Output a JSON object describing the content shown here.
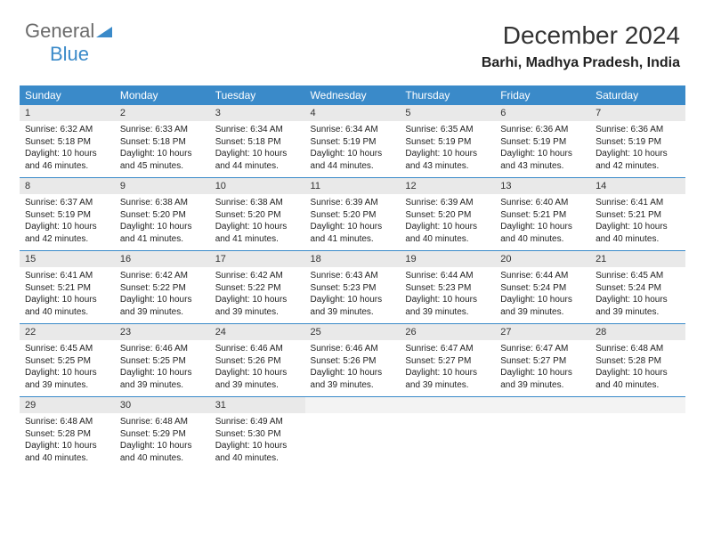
{
  "logo": {
    "word1": "General",
    "word2": "Blue"
  },
  "title": "December 2024",
  "location": "Barhi, Madhya Pradesh, India",
  "colors": {
    "header_bg": "#3a8ac9",
    "header_text": "#ffffff",
    "daynum_bg": "#e9e9e9",
    "row_border": "#3a8ac9",
    "logo_gray": "#6b6b6b",
    "logo_blue": "#3a8ac9"
  },
  "day_headers": [
    "Sunday",
    "Monday",
    "Tuesday",
    "Wednesday",
    "Thursday",
    "Friday",
    "Saturday"
  ],
  "weeks": [
    [
      {
        "n": "1",
        "sr": "6:32 AM",
        "ss": "5:18 PM",
        "dl": "10 hours and 46 minutes."
      },
      {
        "n": "2",
        "sr": "6:33 AM",
        "ss": "5:18 PM",
        "dl": "10 hours and 45 minutes."
      },
      {
        "n": "3",
        "sr": "6:34 AM",
        "ss": "5:18 PM",
        "dl": "10 hours and 44 minutes."
      },
      {
        "n": "4",
        "sr": "6:34 AM",
        "ss": "5:19 PM",
        "dl": "10 hours and 44 minutes."
      },
      {
        "n": "5",
        "sr": "6:35 AM",
        "ss": "5:19 PM",
        "dl": "10 hours and 43 minutes."
      },
      {
        "n": "6",
        "sr": "6:36 AM",
        "ss": "5:19 PM",
        "dl": "10 hours and 43 minutes."
      },
      {
        "n": "7",
        "sr": "6:36 AM",
        "ss": "5:19 PM",
        "dl": "10 hours and 42 minutes."
      }
    ],
    [
      {
        "n": "8",
        "sr": "6:37 AM",
        "ss": "5:19 PM",
        "dl": "10 hours and 42 minutes."
      },
      {
        "n": "9",
        "sr": "6:38 AM",
        "ss": "5:20 PM",
        "dl": "10 hours and 41 minutes."
      },
      {
        "n": "10",
        "sr": "6:38 AM",
        "ss": "5:20 PM",
        "dl": "10 hours and 41 minutes."
      },
      {
        "n": "11",
        "sr": "6:39 AM",
        "ss": "5:20 PM",
        "dl": "10 hours and 41 minutes."
      },
      {
        "n": "12",
        "sr": "6:39 AM",
        "ss": "5:20 PM",
        "dl": "10 hours and 40 minutes."
      },
      {
        "n": "13",
        "sr": "6:40 AM",
        "ss": "5:21 PM",
        "dl": "10 hours and 40 minutes."
      },
      {
        "n": "14",
        "sr": "6:41 AM",
        "ss": "5:21 PM",
        "dl": "10 hours and 40 minutes."
      }
    ],
    [
      {
        "n": "15",
        "sr": "6:41 AM",
        "ss": "5:21 PM",
        "dl": "10 hours and 40 minutes."
      },
      {
        "n": "16",
        "sr": "6:42 AM",
        "ss": "5:22 PM",
        "dl": "10 hours and 39 minutes."
      },
      {
        "n": "17",
        "sr": "6:42 AM",
        "ss": "5:22 PM",
        "dl": "10 hours and 39 minutes."
      },
      {
        "n": "18",
        "sr": "6:43 AM",
        "ss": "5:23 PM",
        "dl": "10 hours and 39 minutes."
      },
      {
        "n": "19",
        "sr": "6:44 AM",
        "ss": "5:23 PM",
        "dl": "10 hours and 39 minutes."
      },
      {
        "n": "20",
        "sr": "6:44 AM",
        "ss": "5:24 PM",
        "dl": "10 hours and 39 minutes."
      },
      {
        "n": "21",
        "sr": "6:45 AM",
        "ss": "5:24 PM",
        "dl": "10 hours and 39 minutes."
      }
    ],
    [
      {
        "n": "22",
        "sr": "6:45 AM",
        "ss": "5:25 PM",
        "dl": "10 hours and 39 minutes."
      },
      {
        "n": "23",
        "sr": "6:46 AM",
        "ss": "5:25 PM",
        "dl": "10 hours and 39 minutes."
      },
      {
        "n": "24",
        "sr": "6:46 AM",
        "ss": "5:26 PM",
        "dl": "10 hours and 39 minutes."
      },
      {
        "n": "25",
        "sr": "6:46 AM",
        "ss": "5:26 PM",
        "dl": "10 hours and 39 minutes."
      },
      {
        "n": "26",
        "sr": "6:47 AM",
        "ss": "5:27 PM",
        "dl": "10 hours and 39 minutes."
      },
      {
        "n": "27",
        "sr": "6:47 AM",
        "ss": "5:27 PM",
        "dl": "10 hours and 39 minutes."
      },
      {
        "n": "28",
        "sr": "6:48 AM",
        "ss": "5:28 PM",
        "dl": "10 hours and 40 minutes."
      }
    ],
    [
      {
        "n": "29",
        "sr": "6:48 AM",
        "ss": "5:28 PM",
        "dl": "10 hours and 40 minutes."
      },
      {
        "n": "30",
        "sr": "6:48 AM",
        "ss": "5:29 PM",
        "dl": "10 hours and 40 minutes."
      },
      {
        "n": "31",
        "sr": "6:49 AM",
        "ss": "5:30 PM",
        "dl": "10 hours and 40 minutes."
      },
      null,
      null,
      null,
      null
    ]
  ],
  "labels": {
    "sunrise": "Sunrise:",
    "sunset": "Sunset:",
    "daylight": "Daylight:"
  }
}
